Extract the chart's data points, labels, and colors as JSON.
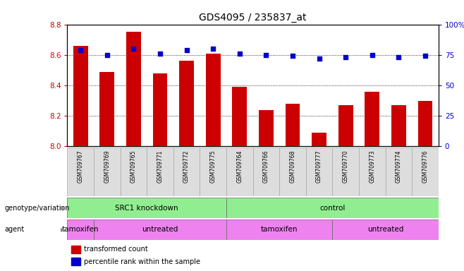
{
  "title": "GDS4095 / 235837_at",
  "samples": [
    "GSM709767",
    "GSM709769",
    "GSM709765",
    "GSM709771",
    "GSM709772",
    "GSM709775",
    "GSM709764",
    "GSM709766",
    "GSM709768",
    "GSM709777",
    "GSM709770",
    "GSM709773",
    "GSM709774",
    "GSM709776"
  ],
  "transformed_count": [
    8.66,
    8.49,
    8.75,
    8.48,
    8.56,
    8.61,
    8.39,
    8.24,
    8.28,
    8.09,
    8.27,
    8.36,
    8.27,
    8.3
  ],
  "percentile_rank": [
    79,
    75,
    80,
    76,
    79,
    80,
    76,
    75,
    74,
    72,
    73,
    75,
    73,
    74
  ],
  "ylim_left": [
    8.0,
    8.8
  ],
  "ylim_right": [
    0,
    100
  ],
  "yticks_left": [
    8.0,
    8.2,
    8.4,
    8.6,
    8.8
  ],
  "yticks_right": [
    0,
    25,
    50,
    75,
    100
  ],
  "ytick_labels_right": [
    "0",
    "25",
    "50",
    "75",
    "100%"
  ],
  "bar_color": "#cc0000",
  "dot_color": "#0000cc",
  "left_tick_color": "#cc0000",
  "right_tick_color": "#0000cc",
  "geno_groups": [
    {
      "label": "SRC1 knockdown",
      "start": 0,
      "end": 6,
      "color": "#90EE90"
    },
    {
      "label": "control",
      "start": 6,
      "end": 14,
      "color": "#90EE90"
    }
  ],
  "agent_groups": [
    {
      "label": "tamoxifen",
      "start": 0,
      "end": 1,
      "color": "#EE82EE"
    },
    {
      "label": "untreated",
      "start": 1,
      "end": 6,
      "color": "#EE82EE"
    },
    {
      "label": "tamoxifen",
      "start": 6,
      "end": 10,
      "color": "#EE82EE"
    },
    {
      "label": "untreated",
      "start": 10,
      "end": 14,
      "color": "#EE82EE"
    }
  ],
  "genotype_label": "genotype/variation",
  "agent_label": "agent",
  "legend_red": "transformed count",
  "legend_blue": "percentile rank within the sample",
  "fig_width": 6.58,
  "fig_height": 3.84,
  "dpi": 100
}
